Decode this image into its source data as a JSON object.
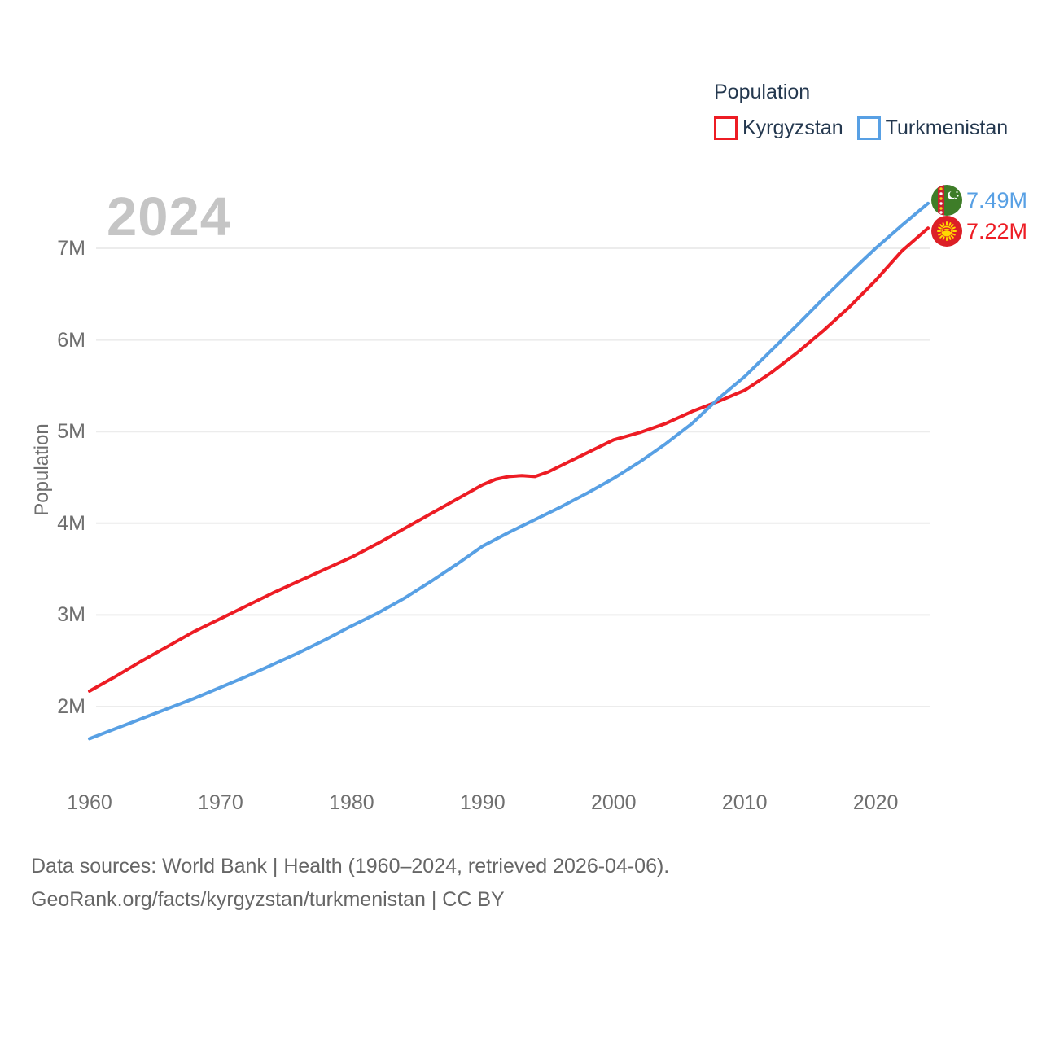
{
  "watermark": "2024",
  "legend": {
    "title": "Population",
    "items": [
      {
        "label": "Kyrgyzstan",
        "color": "#ed1c24"
      },
      {
        "label": "Turkmenistan",
        "color": "#58a0e4"
      }
    ]
  },
  "end_labels": [
    {
      "series": "Turkmenistan",
      "value_label": "7.49M",
      "color": "#58a0e4",
      "icon": "turkmenistan-flag-icon"
    },
    {
      "series": "Kyrgyzstan",
      "value_label": "7.22M",
      "color": "#ed1c24",
      "icon": "kyrgyzstan-flag-icon"
    }
  ],
  "footer": {
    "line1": "Data sources: World Bank | Health (1960–2024, retrieved 2026-04-06).",
    "line2": "GeoRank.org/facts/kyrgyzstan/turkmenistan | CC BY"
  },
  "colors": {
    "kyrgyzstan_line": "#ed1c24",
    "turkmenistan_line": "#58a0e4",
    "legend_text": "#24384f",
    "axis_text": "#6f6f6f",
    "watermark": "#c5c5c5",
    "gridline": "#ececec",
    "footer_text": "#666666"
  },
  "chart_data": {
    "type": "line",
    "title": "Population",
    "xlabel": "",
    "ylabel": "Population",
    "xlim": [
      1960,
      2024
    ],
    "ylim": [
      1.4,
      7.7
    ],
    "grid": "horizontal",
    "legend_position": "top-right",
    "x_ticks": [
      1960,
      1970,
      1980,
      1990,
      2000,
      2010,
      2020
    ],
    "y_ticks": [
      {
        "label": "2M",
        "value": 2
      },
      {
        "label": "3M",
        "value": 3
      },
      {
        "label": "4M",
        "value": 4
      },
      {
        "label": "5M",
        "value": 5
      },
      {
        "label": "6M",
        "value": 6
      },
      {
        "label": "7M",
        "value": 7
      }
    ],
    "series": [
      {
        "name": "Kyrgyzstan",
        "color": "#ed1c24",
        "end_value_label": "7.22M",
        "x": [
          1960,
          1962,
          1964,
          1966,
          1968,
          1970,
          1972,
          1974,
          1976,
          1978,
          1980,
          1982,
          1984,
          1986,
          1988,
          1990,
          1991,
          1992,
          1993,
          1994,
          1995,
          1996,
          1998,
          2000,
          2002,
          2004,
          2006,
          2008,
          2010,
          2012,
          2014,
          2016,
          2018,
          2020,
          2022,
          2024
        ],
        "y": [
          2.17,
          2.33,
          2.5,
          2.66,
          2.82,
          2.96,
          3.1,
          3.24,
          3.37,
          3.5,
          3.63,
          3.78,
          3.94,
          4.1,
          4.26,
          4.42,
          4.48,
          4.51,
          4.52,
          4.51,
          4.56,
          4.63,
          4.77,
          4.91,
          4.99,
          5.09,
          5.22,
          5.33,
          5.45,
          5.64,
          5.86,
          6.1,
          6.36,
          6.65,
          6.97,
          7.22
        ]
      },
      {
        "name": "Turkmenistan",
        "color": "#58a0e4",
        "end_value_label": "7.49M",
        "x": [
          1960,
          1962,
          1964,
          1966,
          1968,
          1970,
          1972,
          1974,
          1976,
          1978,
          1980,
          1982,
          1984,
          1986,
          1988,
          1990,
          1992,
          1994,
          1996,
          1998,
          2000,
          2002,
          2004,
          2006,
          2008,
          2010,
          2012,
          2014,
          2016,
          2018,
          2020,
          2022,
          2024
        ],
        "y": [
          1.65,
          1.76,
          1.87,
          1.98,
          2.09,
          2.21,
          2.33,
          2.46,
          2.59,
          2.73,
          2.88,
          3.02,
          3.18,
          3.36,
          3.55,
          3.75,
          3.9,
          4.04,
          4.18,
          4.33,
          4.49,
          4.67,
          4.87,
          5.09,
          5.36,
          5.6,
          5.88,
          6.16,
          6.45,
          6.73,
          7.0,
          7.25,
          7.49
        ]
      }
    ]
  }
}
